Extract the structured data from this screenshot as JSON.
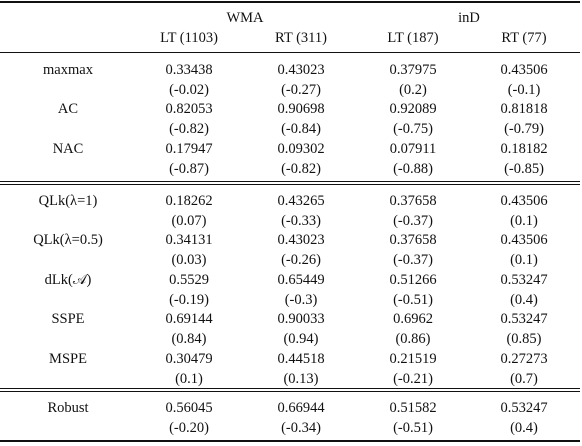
{
  "header": {
    "groups": [
      "WMA",
      "inD"
    ],
    "columns": [
      "LT (1103)",
      "RT (311)",
      "LT (187)",
      "RT (77)"
    ]
  },
  "sections": [
    [
      {
        "label": "maxmax",
        "values": [
          "0.33438",
          "0.43023",
          "0.37975",
          "0.43506"
        ],
        "sub": [
          "(-0.02)",
          "(-0.27)",
          "(0.2)",
          "(-0.1)"
        ]
      },
      {
        "label": "AC",
        "values": [
          "0.82053",
          "0.90698",
          "0.92089",
          "0.81818"
        ],
        "sub": [
          "(-0.82)",
          "(-0.84)",
          "(-0.75)",
          "(-0.79)"
        ]
      },
      {
        "label": "NAC",
        "values": [
          "0.17947",
          "0.09302",
          "0.07911",
          "0.18182"
        ],
        "sub": [
          "(-0.87)",
          "(-0.82)",
          "(-0.88)",
          "(-0.85)"
        ]
      }
    ],
    [
      {
        "label": "QLk(λ=1)",
        "values": [
          "0.18262",
          "0.43265",
          "0.37658",
          "0.43506"
        ],
        "sub": [
          "(0.07)",
          "(-0.33)",
          "(-0.37)",
          "(0.1)"
        ]
      },
      {
        "label": "QLk(λ=0.5)",
        "values": [
          "0.34131",
          "0.43023",
          "0.37658",
          "0.43506"
        ],
        "sub": [
          "(0.03)",
          "(-0.26)",
          "(-0.37)",
          "(0.1)"
        ]
      },
      {
        "label": "dLk(𝒜)",
        "values": [
          "0.5529",
          "0.65449",
          "0.51266",
          "0.53247"
        ],
        "sub": [
          "(-0.19)",
          "(-0.3)",
          "(-0.51)",
          "(0.4)"
        ]
      },
      {
        "label": "SSPE",
        "values": [
          "0.69144",
          "0.90033",
          "0.6962",
          "0.53247"
        ],
        "sub": [
          "(0.84)",
          "(0.94)",
          "(0.86)",
          "(0.85)"
        ]
      },
      {
        "label": "MSPE",
        "values": [
          "0.30479",
          "0.44518",
          "0.21519",
          "0.27273"
        ],
        "sub": [
          "(0.1)",
          "(0.13)",
          "(-0.21)",
          "(0.7)"
        ]
      }
    ],
    [
      {
        "label": "Robust",
        "values": [
          "0.56045",
          "0.66944",
          "0.51582",
          "0.53247"
        ],
        "sub": [
          "(-0.20)",
          "(-0.34)",
          "(-0.51)",
          "(0.4)"
        ]
      }
    ]
  ]
}
